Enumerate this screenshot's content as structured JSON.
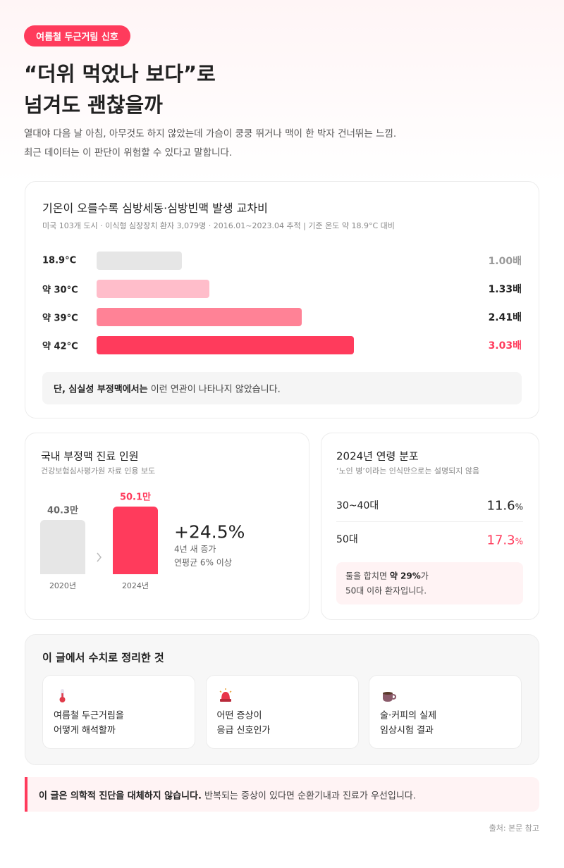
{
  "badge": "여름철 두근거림 신호",
  "header": {
    "title_lines": [
      "“더위 먹었나 보다”로",
      "넘겨도 괜찮을까"
    ],
    "intro_lines": [
      "열대야 다음 날 아침, 아무것도 하지 않았는데 가슴이 쿵쿵 뛰거나 맥이 한 박자 건너뛰는 느낌.",
      "최근 데이터는 이 판단이 위험할 수 있다고 말합니다."
    ]
  },
  "chart_data": [
    {
      "type": "hbar",
      "title": "기온이 오를수록 심방세동·심방빈맥 발생 교차비",
      "subtitle": "미국 103개 도시 · 이식형 심장장치 환자 3,079명 · 2016.01~2023.04 추적  |  기준 온도 약 18.9°C 대비",
      "categories": [
        "18.9°C",
        "약 30°C",
        "약 39°C",
        "약 42°C"
      ],
      "values": [
        1.0,
        1.33,
        2.41,
        3.03
      ],
      "value_labels": [
        "1.00배",
        "1.33배",
        "2.41배",
        "3.03배"
      ],
      "colors": [
        "#e6e6e6",
        "#ffbdca",
        "#ff8296",
        "#ff3b5c"
      ],
      "label_colors": [
        "#9a9a9a",
        "#222222",
        "#222222",
        "#ff3b5c"
      ],
      "xlim": [
        0,
        5
      ],
      "note_bold": "단, 심실성 부정맥에서는",
      "note_rest": " 이런 연관이 나타나지 않았습니다."
    },
    {
      "type": "column",
      "title": "국내 부정맥 진료 인원",
      "subtitle": "건강보험심사평가원 자료 인용 보도",
      "categories": [
        "2020년",
        "2024년"
      ],
      "values": [
        40.3,
        50.1
      ],
      "value_labels": [
        "40.3만",
        "50.1만"
      ],
      "colors": [
        "#e6e6e6",
        "#ff3b5c"
      ],
      "label_colors": [
        "#666666",
        "#ff3b5c"
      ],
      "ylim": [
        0,
        50
      ],
      "change": "+24.5%",
      "change_notes": [
        "4년 새 증가",
        "연평균 6% 이상"
      ]
    }
  ],
  "age": {
    "title": "2024년 연령 분포",
    "subtitle": "‘노인 병’이라는 인식만으로는 설명되지 않음",
    "rows": [
      {
        "label": "30~40대",
        "value": "11.6",
        "unit": "%"
      },
      {
        "label": "50대",
        "value": "17.3",
        "unit": "%"
      }
    ],
    "note": {
      "pre": "둘을 합치면 ",
      "bold": "약 29%",
      "post": "가",
      "line2": "50대 이하 환자입니다."
    }
  },
  "summary": {
    "title": "이 글에서 수치로 정리한 것",
    "cards": [
      {
        "lines": [
          "여름철 두근거림을",
          "어떻게 해석할까"
        ]
      },
      {
        "lines": [
          "어떤 증상이",
          "응급 신호인가"
        ]
      },
      {
        "lines": [
          "술·커피의 실제",
          "임상시험 결과"
        ]
      }
    ]
  },
  "disclaimer": {
    "bold": "이 글은 의학적 진단을 대체하지 않습니다.",
    "rest": " 반복되는 증상이 있다면 순환기내과 진료가 우선입니다."
  },
  "source": "출처: 본문 참고"
}
